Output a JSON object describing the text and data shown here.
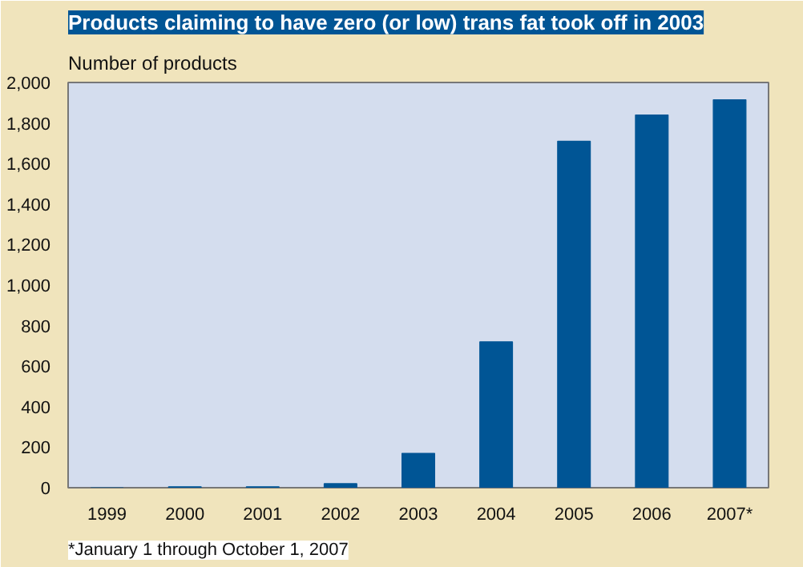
{
  "chart_data": {
    "type": "bar",
    "title": "Products claiming to have zero (or low) trans fat took off in 2003",
    "ylabel": "Number of products",
    "categories": [
      "1999",
      "2000",
      "2001",
      "2002",
      "2003",
      "2004",
      "2005",
      "2006",
      "2007*"
    ],
    "values": [
      0,
      5,
      5,
      20,
      170,
      720,
      1710,
      1840,
      1915
    ],
    "color": "#005595",
    "ylim": [
      0,
      2000
    ],
    "yticks": [
      {
        "value": 0,
        "label": "0"
      },
      {
        "value": 200,
        "label": "200"
      },
      {
        "value": 400,
        "label": "400"
      },
      {
        "value": 600,
        "label": "600"
      },
      {
        "value": 800,
        "label": "800"
      },
      {
        "value": 1000,
        "label": "1,000"
      },
      {
        "value": 1200,
        "label": "1,200"
      },
      {
        "value": 1400,
        "label": "1,400"
      },
      {
        "value": 1600,
        "label": "1,600"
      },
      {
        "value": 1800,
        "label": "1,800"
      },
      {
        "value": 2000,
        "label": "2,000"
      }
    ],
    "grid": false,
    "annotations": [
      "*January 1 through October 1, 2007"
    ]
  }
}
